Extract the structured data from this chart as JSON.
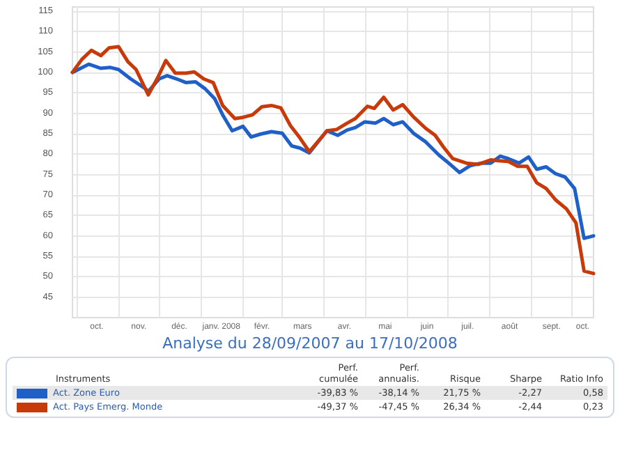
{
  "chart_data": {
    "type": "line",
    "subtitle": "Analyse du 28/09/2007 au 17/10/2008",
    "annotations": [
      "Instruments",
      "Perf. cumulée",
      "Perf. annualis.",
      "Risque",
      "Sharpe",
      "Ratio Info",
      "-39,83 %",
      "-38,14 %",
      "21,75 %",
      "-2,27",
      "0,58",
      "-49,37 %",
      "-47,45 %",
      "26,34 %",
      "-2,44",
      "0,23"
    ],
    "series": [
      {
        "name": "Act. Zone Euro",
        "color": "#1f5fc8",
        "x": [
          "2007-09-28",
          "2007-10-10",
          "2007-10-19",
          "2007-10-26",
          "2007-11-01",
          "2007-11-10",
          "2007-11-21",
          "2007-11-23",
          "2007-12-01",
          "2007-12-07",
          "2007-12-14",
          "2007-12-21",
          "2007-12-28",
          "2008-01-04",
          "2008-01-11",
          "2008-01-17",
          "2008-01-24",
          "2008-02-01",
          "2008-02-07",
          "2008-02-14",
          "2008-02-22",
          "2008-03-01",
          "2008-03-08",
          "2008-03-14",
          "2008-03-21",
          "2008-04-03",
          "2008-04-11",
          "2008-04-18",
          "2008-04-24",
          "2008-05-01",
          "2008-05-09",
          "2008-05-15",
          "2008-05-22",
          "2008-05-29",
          "2008-06-06",
          "2008-06-15",
          "2008-06-25",
          "2008-07-02",
          "2008-07-10",
          "2008-07-18",
          "2008-07-26",
          "2008-08-02",
          "2008-08-09",
          "2008-08-15",
          "2008-08-23",
          "2008-08-30",
          "2008-09-05",
          "2008-09-12",
          "2008-09-19",
          "2008-09-26",
          "2008-10-03",
          "2008-10-10",
          "2008-10-17"
        ],
        "values": [
          100,
          102,
          101,
          101.2,
          100.7,
          98.4,
          96,
          95.3,
          98.4,
          99.2,
          98.4,
          97.5,
          97.7,
          96,
          93.6,
          89.6,
          85.7,
          86.8,
          84.2,
          84.9,
          85.5,
          85.1,
          82,
          81.5,
          80.3,
          85.7,
          84.6,
          85.9,
          86.5,
          87.9,
          87.6,
          88.7,
          87.2,
          87.9,
          85.1,
          83,
          79.7,
          77.8,
          75.5,
          77.2,
          77.8,
          77.8,
          79.5,
          78.9,
          77.8,
          79.3,
          76.3,
          76.9,
          75.2,
          74.4,
          71.6,
          59.4,
          60
        ]
      },
      {
        "name": "Act. Pays Emerg. Monde",
        "color": "#c83a0a",
        "x": [
          "2007-09-28",
          "2007-10-05",
          "2007-10-12",
          "2007-10-19",
          "2007-10-25",
          "2007-11-01",
          "2007-11-08",
          "2007-11-14",
          "2007-11-23",
          "2007-11-30",
          "2007-12-06",
          "2007-12-13",
          "2007-12-21",
          "2007-12-27",
          "2008-01-03",
          "2008-01-10",
          "2008-01-17",
          "2008-01-26",
          "2008-02-01",
          "2008-02-08",
          "2008-02-15",
          "2008-02-22",
          "2008-02-29",
          "2008-03-07",
          "2008-03-14",
          "2008-03-21",
          "2008-04-03",
          "2008-04-10",
          "2008-04-17",
          "2008-04-24",
          "2008-05-03",
          "2008-05-08",
          "2008-05-15",
          "2008-05-22",
          "2008-05-29",
          "2008-06-06",
          "2008-06-15",
          "2008-06-22",
          "2008-06-28",
          "2008-07-05",
          "2008-07-15",
          "2008-07-24",
          "2008-08-02",
          "2008-08-08",
          "2008-08-15",
          "2008-08-22",
          "2008-08-29",
          "2008-09-05",
          "2008-09-12",
          "2008-09-19",
          "2008-09-27",
          "2008-10-04",
          "2008-10-10",
          "2008-10-17"
        ],
        "values": [
          100,
          103.2,
          105.4,
          104.1,
          106,
          106.3,
          102.6,
          100.7,
          94.5,
          98.7,
          102.9,
          99.8,
          99.8,
          100.1,
          98.4,
          97.5,
          91.9,
          88.7,
          89,
          89.6,
          91.6,
          91.9,
          91.3,
          87,
          84,
          80.6,
          85.7,
          86,
          87.4,
          88.7,
          91.7,
          91.2,
          93.9,
          90.8,
          92.1,
          89.1,
          86.3,
          84.6,
          81.8,
          78.9,
          77.8,
          77.5,
          78.6,
          78.4,
          78.2,
          77,
          77,
          73,
          71.6,
          68.8,
          66.6,
          63.2,
          51.4,
          50.8
        ]
      }
    ],
    "xlim": [
      "2007-09-28",
      "2008-10-17"
    ],
    "xticks": [
      {
        "value": "2007-10-01",
        "label": null
      },
      {
        "value": "2007-10-16",
        "label": "oct."
      },
      {
        "value": "2007-11-01",
        "label": null
      },
      {
        "value": "2007-11-16",
        "label": "nov."
      },
      {
        "value": "2007-12-01",
        "label": null
      },
      {
        "value": "2007-12-16",
        "label": "déc."
      },
      {
        "value": "2008-01-01",
        "label": null
      },
      {
        "value": "2008-01-16",
        "label": "janv. 2008"
      },
      {
        "value": "2008-02-01",
        "label": null
      },
      {
        "value": "2008-02-15",
        "label": "févr."
      },
      {
        "value": "2008-03-01",
        "label": null
      },
      {
        "value": "2008-03-16",
        "label": "mars"
      },
      {
        "value": "2008-04-01",
        "label": null
      },
      {
        "value": "2008-04-16",
        "label": "avr."
      },
      {
        "value": "2008-05-01",
        "label": null
      },
      {
        "value": "2008-05-16",
        "label": "mai"
      },
      {
        "value": "2008-06-01",
        "label": null
      },
      {
        "value": "2008-06-16",
        "label": "juin"
      },
      {
        "value": "2008-07-01",
        "label": null
      },
      {
        "value": "2008-07-16",
        "label": "juil."
      },
      {
        "value": "2008-08-01",
        "label": null
      },
      {
        "value": "2008-08-16",
        "label": "août"
      },
      {
        "value": "2008-09-01",
        "label": null
      },
      {
        "value": "2008-09-16",
        "label": "sept."
      },
      {
        "value": "2008-10-01",
        "label": null
      },
      {
        "value": "2008-10-09",
        "label": "oct."
      }
    ],
    "ylim": [
      40,
      116
    ],
    "yticks": [
      45,
      50,
      55,
      60,
      65,
      70,
      75,
      80,
      85,
      90,
      95,
      100,
      105,
      110,
      115
    ],
    "grid": true,
    "legend": "bottom",
    "marker": "none",
    "line_style": "solid"
  }
}
